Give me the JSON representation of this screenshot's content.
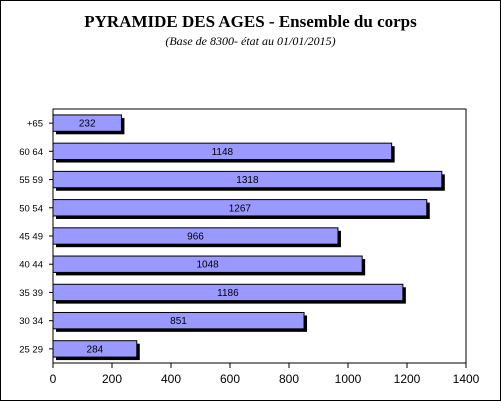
{
  "chart_data": {
    "type": "bar",
    "orientation": "horizontal",
    "title": "PYRAMIDE DES AGES - Ensemble du corps",
    "subtitle": "(Base de 8300- état au 01/01/2015)",
    "categories": [
      "+65",
      "60 64",
      "55 59",
      "50 54",
      "45 49",
      "40 44",
      "35 39",
      "30 34",
      "25 29"
    ],
    "values": [
      232,
      1148,
      1318,
      1267,
      966,
      1048,
      1186,
      851,
      284
    ],
    "xlim": [
      0,
      1400
    ],
    "xticks": [
      "0",
      "200",
      "400",
      "600",
      "800",
      "1000",
      "1200",
      "1400"
    ],
    "xlabel": "",
    "ylabel": "",
    "data_labels": true,
    "grid": false,
    "legend": "none",
    "bar_color": "#9999ff",
    "bar_edge_color": "#000000"
  }
}
